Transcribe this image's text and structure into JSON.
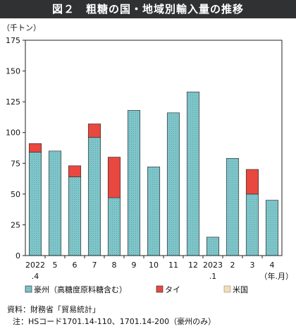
{
  "title": "図２　粗糖の国・地域別輸入量の推移",
  "unit_label": "（千トン）",
  "x_unit_label": "（年.月）",
  "colors": {
    "australia": "#7fc5c9",
    "thailand": "#e8483f",
    "us": "#f3dfb3"
  },
  "chart_data": {
    "type": "bar",
    "stacked": true,
    "categories": [
      "2022.4",
      "5",
      "6",
      "7",
      "8",
      "9",
      "10",
      "11",
      "12",
      "2023.1",
      "2",
      "3",
      "4"
    ],
    "x_tick_labels": [
      {
        "top": "2022",
        "bottom": ".4"
      },
      {
        "top": "5",
        "bottom": ""
      },
      {
        "top": "6",
        "bottom": ""
      },
      {
        "top": "7",
        "bottom": ""
      },
      {
        "top": "8",
        "bottom": ""
      },
      {
        "top": "9",
        "bottom": ""
      },
      {
        "top": "10",
        "bottom": ""
      },
      {
        "top": "11",
        "bottom": ""
      },
      {
        "top": "12",
        "bottom": ""
      },
      {
        "top": "2023",
        "bottom": ".1"
      },
      {
        "top": "2",
        "bottom": ""
      },
      {
        "top": "3",
        "bottom": ""
      },
      {
        "top": "4",
        "bottom": ""
      }
    ],
    "series": [
      {
        "key": "australia",
        "name": "豪州（高糖度原料糖含む）",
        "values": [
          84,
          85,
          64,
          96,
          47,
          118,
          72,
          116,
          133,
          15,
          79,
          50,
          45
        ]
      },
      {
        "key": "thailand",
        "name": "タイ",
        "values": [
          7,
          0,
          9,
          11,
          33,
          0,
          0,
          0,
          0,
          0,
          0,
          20,
          0
        ]
      },
      {
        "key": "us",
        "name": "米国",
        "values": [
          0,
          0,
          0,
          0,
          0,
          0,
          0,
          0,
          0,
          0,
          0,
          0,
          0
        ]
      }
    ],
    "ylim": [
      0,
      175
    ],
    "yticks": [
      0,
      25,
      50,
      75,
      100,
      125,
      150,
      175
    ],
    "grid": false,
    "legend_position": "bottom"
  },
  "notes": {
    "source_label": "資料：",
    "source_text": "財務省「貿易統計」",
    "note_label": "注：",
    "note_text": "HSコード1701.14-110、1701.14-200（豪州のみ）"
  }
}
